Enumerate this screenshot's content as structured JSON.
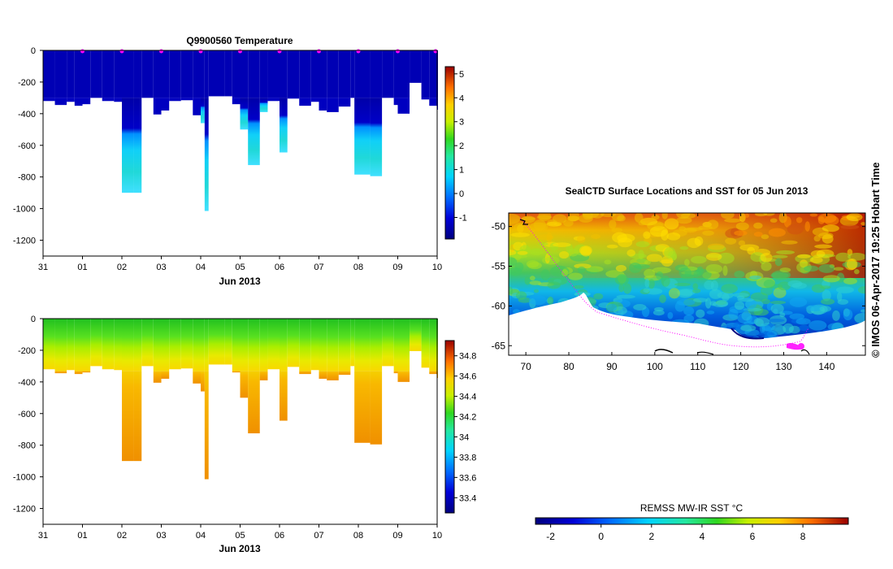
{
  "chart_data": [
    {
      "id": "temperature",
      "type": "heatmap",
      "title": "Q9900560  Temperature",
      "xlabel": "Jun 2013",
      "x_ticks": [
        "31",
        "01",
        "02",
        "03",
        "04",
        "05",
        "06",
        "07",
        "08",
        "09",
        "10"
      ],
      "x_range_days": [
        0,
        10
      ],
      "y_ticks": [
        0,
        -200,
        -400,
        -600,
        -800,
        -1000,
        -1200
      ],
      "ylim": [
        -1300,
        0
      ],
      "colorbar": {
        "ticks": [
          5,
          4,
          3,
          2,
          1,
          0,
          -1
        ],
        "range": [
          -1.9,
          5.3
        ]
      },
      "surface_markers_day": [
        1,
        2,
        3,
        4,
        5,
        6,
        7,
        8,
        9,
        10
      ],
      "profiles": [
        {
          "t": 0.0,
          "d": 320
        },
        {
          "t": 0.3,
          "d": 345
        },
        {
          "t": 0.6,
          "d": 325
        },
        {
          "t": 0.8,
          "d": 350
        },
        {
          "t": 1.0,
          "d": 340
        },
        {
          "t": 1.2,
          "d": 300
        },
        {
          "t": 1.5,
          "d": 320
        },
        {
          "t": 1.8,
          "d": 325
        },
        {
          "t": 2.0,
          "d": 900,
          "mid": true
        },
        {
          "t": 2.3,
          "d": 900,
          "mid": true
        },
        {
          "t": 2.5,
          "d": 300
        },
        {
          "t": 2.8,
          "d": 405
        },
        {
          "t": 3.0,
          "d": 380
        },
        {
          "t": 3.2,
          "d": 320
        },
        {
          "t": 3.5,
          "d": 315
        },
        {
          "t": 3.8,
          "d": 410
        },
        {
          "t": 4.0,
          "d": 460,
          "mid": true
        },
        {
          "t": 4.1,
          "d": 1015,
          "mid": true
        },
        {
          "t": 4.2,
          "d": 290
        },
        {
          "t": 4.6,
          "d": 290
        },
        {
          "t": 4.8,
          "d": 340
        },
        {
          "t": 5.0,
          "d": 500,
          "mid": true
        },
        {
          "t": 5.2,
          "d": 725,
          "mid": true
        },
        {
          "t": 5.5,
          "d": 390,
          "mid": true
        },
        {
          "t": 5.7,
          "d": 320
        },
        {
          "t": 6.0,
          "d": 645,
          "mid": true
        },
        {
          "t": 6.2,
          "d": 305
        },
        {
          "t": 6.5,
          "d": 350
        },
        {
          "t": 6.8,
          "d": 325
        },
        {
          "t": 7.0,
          "d": 380
        },
        {
          "t": 7.2,
          "d": 390
        },
        {
          "t": 7.5,
          "d": 355
        },
        {
          "t": 7.8,
          "d": 300
        },
        {
          "t": 7.9,
          "d": 785,
          "mid": true
        },
        {
          "t": 8.3,
          "d": 795,
          "mid": true
        },
        {
          "t": 8.6,
          "d": 300
        },
        {
          "t": 8.9,
          "d": 345
        },
        {
          "t": 9.0,
          "d": 400
        },
        {
          "t": 9.3,
          "d": 205
        },
        {
          "t": 9.6,
          "d": 310
        },
        {
          "t": 9.8,
          "d": 350
        },
        {
          "t": 10.0,
          "d": 375
        }
      ]
    },
    {
      "id": "salinity",
      "type": "heatmap",
      "title": "",
      "xlabel": "Jun 2013",
      "x_ticks": [
        "31",
        "01",
        "02",
        "03",
        "04",
        "05",
        "06",
        "07",
        "08",
        "09",
        "10"
      ],
      "x_range_days": [
        0,
        10
      ],
      "y_ticks": [
        0,
        -200,
        -400,
        -600,
        -800,
        -1000,
        -1200
      ],
      "ylim": [
        -1300,
        0
      ],
      "colorbar": {
        "ticks": [
          34.8,
          34.6,
          34.4,
          34.2,
          34,
          33.8,
          33.6,
          33.4
        ],
        "range": [
          33.25,
          34.95
        ]
      }
    },
    {
      "id": "sst_map",
      "type": "heatmap",
      "title": "SealCTD Surface Locations and SST for 05 Jun 2013",
      "x_ticks": [
        70,
        80,
        90,
        100,
        110,
        120,
        130,
        140
      ],
      "xlim": [
        66,
        149
      ],
      "y_ticks": [
        -50,
        -55,
        -60,
        -65
      ],
      "ylim": [
        -66.2,
        -48.3
      ],
      "colorbar": {
        "label": "REMSS MW-IR SST °C",
        "ticks": [
          -2,
          0,
          2,
          4,
          6,
          8
        ],
        "range": [
          -2.6,
          9.8
        ]
      }
    }
  ],
  "credit": "© IMOS 06-Apr-2017 19:25 Hobart Time"
}
